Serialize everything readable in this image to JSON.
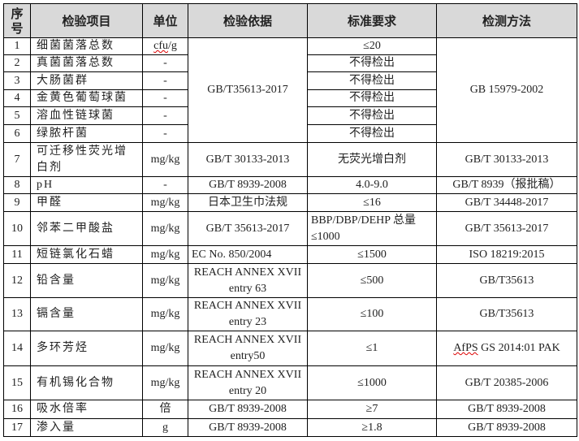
{
  "headers": {
    "no": "序号",
    "item": "检验项目",
    "unit": "单位",
    "basis": "检验依据",
    "requirement": "标准要求",
    "method": "检测方法"
  },
  "rows": [
    {
      "no": "1",
      "item": "细菌菌落总数",
      "unit": "cfu/g",
      "basis": "GB/T35613-2017",
      "requirement": "≤20",
      "method": "GB 15979-2002"
    },
    {
      "no": "2",
      "item": "真菌菌落总数",
      "unit": "-",
      "requirement": "不得检出"
    },
    {
      "no": "3",
      "item": "大肠菌群",
      "unit": "-",
      "requirement": "不得检出"
    },
    {
      "no": "4",
      "item": "金黄色葡萄球菌",
      "unit": "-",
      "requirement": "不得检出"
    },
    {
      "no": "5",
      "item": "溶血性链球菌",
      "unit": "-",
      "requirement": "不得检出"
    },
    {
      "no": "6",
      "item": "绿脓杆菌",
      "unit": "-",
      "requirement": "不得检出"
    },
    {
      "no": "7",
      "item": "可迁移性荧光增白剂",
      "unit": "mg/kg",
      "basis": "GB/T 30133-2013",
      "requirement": "无荧光增白剂",
      "method": "GB/T 30133-2013"
    },
    {
      "no": "8",
      "item": "pH",
      "unit": "-",
      "basis": "GB/T 8939-2008",
      "requirement": "4.0-9.0",
      "method": "GB/T 8939（报批稿）"
    },
    {
      "no": "9",
      "item": "甲醛",
      "unit": "mg/kg",
      "basis": "日本卫生巾法规",
      "requirement": "≤16",
      "method": "GB/T 34448-2017"
    },
    {
      "no": "10",
      "item": "邻苯二甲酸盐",
      "unit": "mg/kg",
      "basis": "GB/T 35613-2017",
      "requirement": "BBP/DBP/DEHP 总量≤1000",
      "method": "GB/T 35613-2017"
    },
    {
      "no": "11",
      "item": "短链氯化石蜡",
      "unit": "mg/kg",
      "basis": "EC No. 850/2004",
      "requirement": "≤1500",
      "method": "ISO 18219:2015"
    },
    {
      "no": "12",
      "item": "铅含量",
      "unit": "mg/kg",
      "basis": "REACH ANNEX XVII entry 63",
      "requirement": "≤500",
      "method": "GB/T35613"
    },
    {
      "no": "13",
      "item": "镉含量",
      "unit": "mg/kg",
      "basis": "REACH ANNEX XVII entry 23",
      "requirement": "≤100",
      "method": "GB/T35613"
    },
    {
      "no": "14",
      "item": "多环芳烃",
      "unit": "mg/kg",
      "basis": "REACH ANNEX XVII entry50",
      "requirement": "≤1",
      "method": "AfPS GS 2014:01 PAK"
    },
    {
      "no": "15",
      "item": "有机锡化合物",
      "unit": "mg/kg",
      "basis": "REACH ANNEX XVII entry 20",
      "requirement": "≤1000",
      "method": "GB/T 20385-2006"
    },
    {
      "no": "16",
      "item": "吸水倍率",
      "unit": "倍",
      "basis": "GB/T 8939-2008",
      "requirement": "≥7",
      "method": "GB/T 8939-2008"
    },
    {
      "no": "17",
      "item": "渗入量",
      "unit": "g",
      "basis": "GB/T 8939-2008",
      "requirement": "≥1.8",
      "method": "GB/T 8939-2008"
    }
  ]
}
